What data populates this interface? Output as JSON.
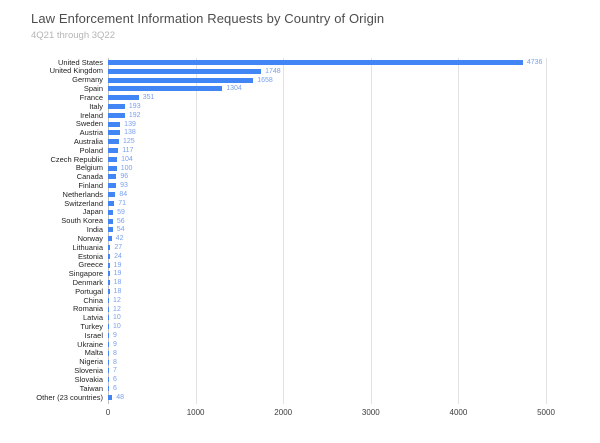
{
  "header": {
    "title": "Law Enforcement Information Requests by Country of Origin",
    "subtitle": "4Q21 through 3Q22"
  },
  "chart_data": {
    "type": "bar",
    "orientation": "horizontal",
    "title": "Law Enforcement Information Requests by Country of Origin",
    "subtitle": "4Q21 through 3Q22",
    "categories": [
      "United States",
      "United Kingdom",
      "Germany",
      "Spain",
      "France",
      "Italy",
      "Ireland",
      "Sweden",
      "Austria",
      "Australia",
      "Poland",
      "Czech Republic",
      "Belgium",
      "Canada",
      "Finland",
      "Netherlands",
      "Switzerland",
      "Japan",
      "South Korea",
      "India",
      "Norway",
      "Lithuania",
      "Estonia",
      "Greece",
      "Singapore",
      "Denmark",
      "Portugal",
      "China",
      "Romania",
      "Latvia",
      "Turkey",
      "Israel",
      "Ukraine",
      "Malta",
      "Nigeria",
      "Slovenia",
      "Slovakia",
      "Taiwan",
      "Other (23 countries)"
    ],
    "values": [
      4736,
      1748,
      1658,
      1304,
      351,
      193,
      192,
      139,
      138,
      125,
      117,
      104,
      100,
      96,
      93,
      84,
      71,
      59,
      56,
      54,
      42,
      27,
      24,
      19,
      19,
      18,
      18,
      12,
      12,
      10,
      10,
      9,
      9,
      8,
      8,
      7,
      6,
      6,
      48
    ],
    "xlabel": "",
    "ylabel": "",
    "xlim": [
      0,
      5000
    ],
    "x_ticks": [
      "0",
      "1000",
      "2000",
      "3000",
      "4000",
      "5000"
    ],
    "grid": true,
    "legend": "none",
    "bar_color": "#4285f4",
    "value_label_color": "#7aa0ee"
  }
}
